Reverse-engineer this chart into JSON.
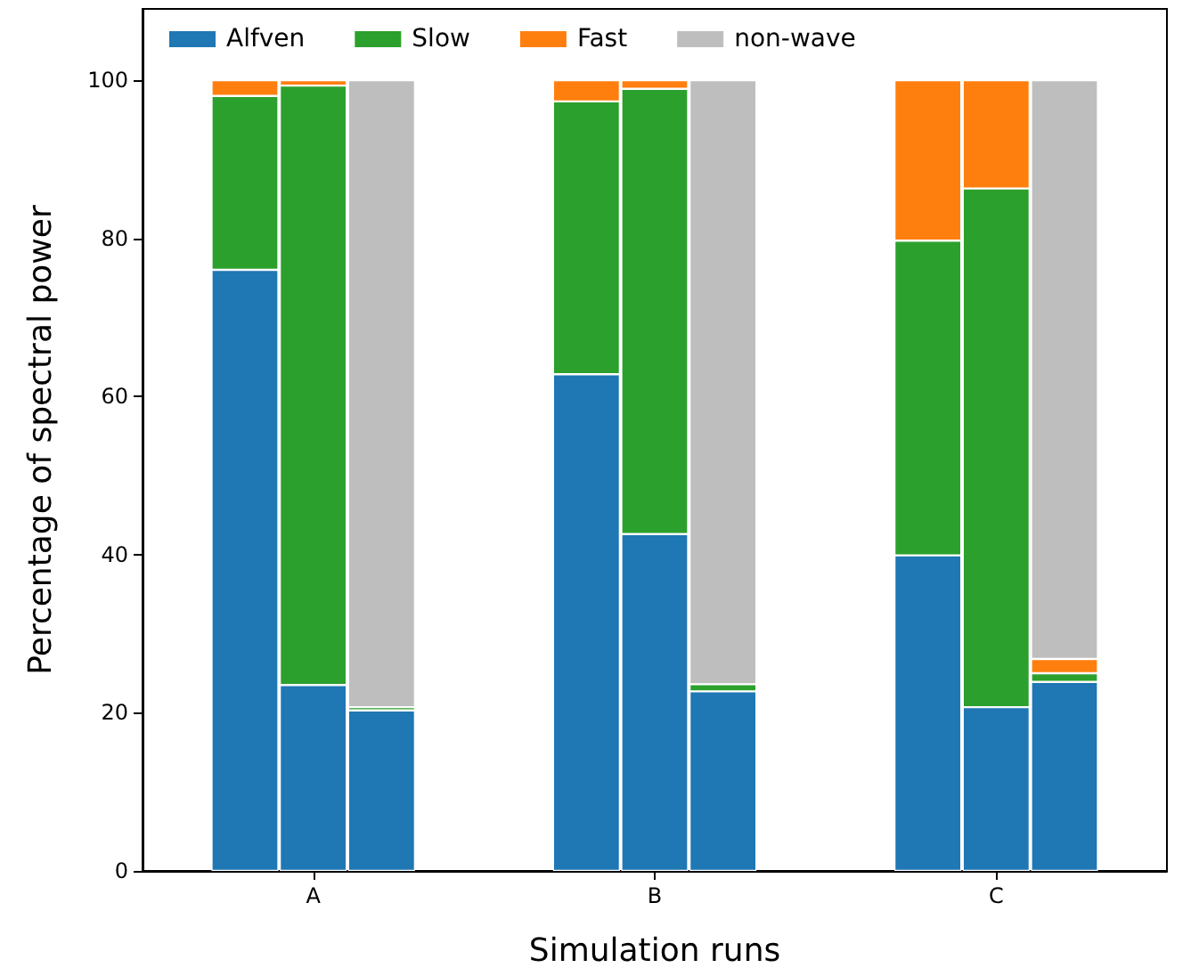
{
  "chart_data": {
    "type": "bar",
    "stacked": true,
    "xlabel": "Simulation runs",
    "ylabel": "Percentage of spectral power",
    "categories": [
      null,
      null,
      "A",
      null,
      null,
      null,
      null,
      "B",
      null,
      null,
      null,
      null,
      "C",
      null,
      null
    ],
    "series": [
      {
        "name": "Alfven",
        "color": "#1f77b4",
        "values": [
          null,
          76,
          23.5,
          20.3,
          null,
          null,
          62.8,
          42.6,
          22.7,
          null,
          null,
          39.9,
          20.7,
          23.9,
          null
        ]
      },
      {
        "name": "Slow",
        "color": "#2ca02c",
        "values": [
          null,
          22,
          75.8,
          0.4,
          null,
          null,
          34.5,
          56.3,
          0.9,
          null,
          null,
          39.8,
          65.6,
          1.1,
          null
        ]
      },
      {
        "name": "Fast",
        "color": "#ff7f0e",
        "values": [
          null,
          2,
          0.7,
          null,
          null,
          null,
          2.7,
          1.1,
          null,
          null,
          null,
          20.3,
          13.7,
          1.8,
          null
        ]
      },
      {
        "name": "non-wave",
        "color": "#bebebe",
        "values": [
          null,
          null,
          null,
          79.3,
          null,
          null,
          null,
          null,
          76.4,
          null,
          null,
          null,
          null,
          73.2,
          null
        ]
      }
    ],
    "ylim": [
      0,
      109
    ],
    "yticks": [
      0,
      20,
      40,
      60,
      80,
      100
    ],
    "grid": false,
    "legend": "top left"
  }
}
